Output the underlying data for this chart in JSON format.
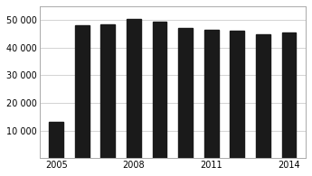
{
  "years": [
    2005,
    2006,
    2007,
    2008,
    2009,
    2010,
    2011,
    2012,
    2013,
    2014
  ],
  "values": [
    13000,
    48000,
    48500,
    50500,
    49500,
    47000,
    46500,
    46000,
    45000,
    45500
  ],
  "bar_color": "#1a1a1a",
  "ylim": [
    0,
    55000
  ],
  "yticks": [
    10000,
    20000,
    30000,
    40000,
    50000
  ],
  "ytick_labels": [
    "10 000",
    "20 000",
    "30 000",
    "40 000",
    "50 000"
  ],
  "xticks": [
    2005,
    2008,
    2011,
    2014
  ],
  "background_color": "#ffffff",
  "bar_width": 0.55,
  "xlim": [
    2004.35,
    2014.65
  ]
}
